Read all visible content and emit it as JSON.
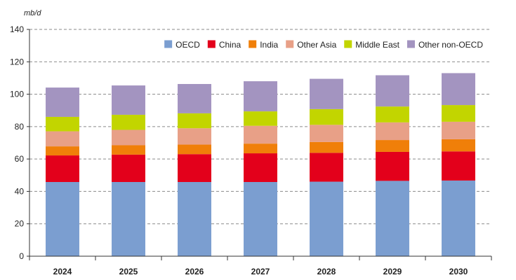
{
  "chart_data": {
    "type": "bar",
    "stacked": true,
    "title": "",
    "xlabel": "",
    "ylabel": "mb/d",
    "ylim": [
      0,
      140
    ],
    "yticks": [
      0,
      20,
      40,
      60,
      80,
      100,
      120,
      140
    ],
    "grid": true,
    "legend_position": "top-right",
    "categories": [
      "2024",
      "2025",
      "2026",
      "2027",
      "2028",
      "2029",
      "2030"
    ],
    "series": [
      {
        "name": "OECD",
        "color": "#7b9ed0",
        "values": [
          45.8,
          45.8,
          45.8,
          45.8,
          46.0,
          46.5,
          46.7
        ]
      },
      {
        "name": "China",
        "color": "#e3001b",
        "values": [
          16.4,
          16.9,
          17.2,
          17.7,
          17.8,
          17.9,
          18.0
        ]
      },
      {
        "name": "India",
        "color": "#f07f09",
        "values": [
          5.6,
          5.8,
          5.9,
          6.0,
          6.7,
          7.3,
          7.5
        ]
      },
      {
        "name": "Other Asia",
        "color": "#e8a087",
        "values": [
          9.3,
          9.5,
          10.1,
          11.0,
          10.6,
          10.9,
          10.8
        ]
      },
      {
        "name": "Middle East",
        "color": "#c2d500",
        "values": [
          8.9,
          9.3,
          9.2,
          8.9,
          9.7,
          9.8,
          10.3
        ]
      },
      {
        "name": "Other non-OECD",
        "color": "#a394c0",
        "values": [
          18.1,
          18.1,
          18.1,
          18.6,
          18.7,
          19.3,
          19.7
        ]
      }
    ]
  }
}
